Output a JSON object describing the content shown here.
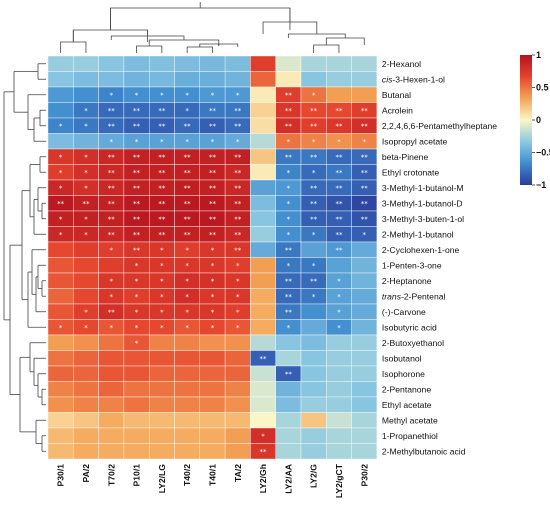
{
  "chart_data": {
    "type": "heatmap",
    "title": "",
    "xlabel": "",
    "ylabel": "",
    "columns": [
      "P30/1",
      "PA/2",
      "T70/2",
      "P10/1",
      "LY2/LG",
      "T40/2",
      "T40/1",
      "TA/2",
      "LY2/Gh",
      "LY2/AA",
      "LY2/G",
      "LY2/gCT",
      "P30/2"
    ],
    "rows": [
      {
        "label": "2-Hexanol",
        "italic": "",
        "rest": "2-Hexanol"
      },
      {
        "label": "cis-3-Hexen-1-ol",
        "italic": "cis",
        "rest": "-3-Hexen-1-ol"
      },
      {
        "label": "Butanal",
        "italic": "",
        "rest": "Butanal"
      },
      {
        "label": "Acrolein",
        "italic": "",
        "rest": "Acrolein"
      },
      {
        "label": "2,2,4,6,6-Pentamethylheptane",
        "italic": "",
        "rest": "2,2,4,6,6-Pentamethylheptane"
      },
      {
        "label": "Isopropyl acetate",
        "italic": "",
        "rest": "Isopropyl acetate"
      },
      {
        "label": "beta-Pinene",
        "italic": "",
        "rest": "beta-Pinene"
      },
      {
        "label": "Ethyl crotonate",
        "italic": "",
        "rest": "Ethyl crotonate"
      },
      {
        "label": "3-Methyl-1-butanol-M",
        "italic": "",
        "rest": "3-Methyl-1-butanol-M"
      },
      {
        "label": "3-Methyl-1-butanol-D",
        "italic": "",
        "rest": "3-Methyl-1-butanol-D"
      },
      {
        "label": "3-Methyl-3-buten-1-ol",
        "italic": "",
        "rest": "3-Methyl-3-buten-1-ol"
      },
      {
        "label": "2-Methyl-1-butanol",
        "italic": "",
        "rest": "2-Methyl-1-butanol"
      },
      {
        "label": "2-Cyclohexen-1-one",
        "italic": "",
        "rest": "2-Cyclohexen-1-one"
      },
      {
        "label": "1-Penten-3-one",
        "italic": "",
        "rest": "1-Penten-3-one"
      },
      {
        "label": "2-Heptanone",
        "italic": "",
        "rest": "2-Heptanone"
      },
      {
        "label": "trans-2-Pentenal",
        "italic": "trans",
        "rest": "-2-Pentenal"
      },
      {
        "label": "(-)-Carvone",
        "italic": "",
        "rest": "(-)-Carvone"
      },
      {
        "label": "Isobutyric acid",
        "italic": "",
        "rest": "Isobutyric acid"
      },
      {
        "label": "2-Butoxyethanol",
        "italic": "",
        "rest": "2-Butoxyethanol"
      },
      {
        "label": "Isobutanol",
        "italic": "",
        "rest": "Isobutanol"
      },
      {
        "label": "Isophorone",
        "italic": "",
        "rest": "Isophorone"
      },
      {
        "label": "2-Pentanone",
        "italic": "",
        "rest": "2-Pentanone"
      },
      {
        "label": "Ethyl acetate",
        "italic": "",
        "rest": "Ethyl acetate"
      },
      {
        "label": "Methyl acetate",
        "italic": "",
        "rest": "Methyl acetate"
      },
      {
        "label": "1-Propanethiol",
        "italic": "",
        "rest": "1-Propanethiol"
      },
      {
        "label": "2-Methylbutanoic acid",
        "italic": "",
        "rest": "2-Methylbutanoic acid"
      }
    ],
    "values": [
      [
        -0.3,
        -0.3,
        -0.35,
        -0.4,
        -0.38,
        -0.4,
        -0.42,
        -0.4,
        0.7,
        -0.1,
        -0.25,
        -0.25,
        -0.25
      ],
      [
        -0.35,
        -0.4,
        -0.4,
        -0.45,
        -0.42,
        -0.48,
        -0.48,
        -0.45,
        0.55,
        0.05,
        -0.35,
        -0.3,
        -0.3
      ],
      [
        -0.6,
        -0.65,
        -0.7,
        -0.65,
        -0.65,
        -0.65,
        -0.6,
        -0.6,
        0.05,
        0.7,
        0.5,
        0.35,
        0.35
      ],
      [
        -0.65,
        -0.75,
        -0.8,
        -0.8,
        -0.8,
        -0.8,
        -0.75,
        -0.75,
        0.15,
        0.75,
        0.65,
        0.65,
        0.7
      ],
      [
        -0.7,
        -0.75,
        -0.8,
        -0.85,
        -0.85,
        -0.8,
        -0.85,
        -0.8,
        0.1,
        0.8,
        0.7,
        0.75,
        0.8
      ],
      [
        -0.4,
        -0.45,
        -0.5,
        -0.55,
        -0.55,
        -0.55,
        -0.55,
        -0.5,
        -0.2,
        0.5,
        0.45,
        0.4,
        0.45
      ],
      [
        0.75,
        0.8,
        0.85,
        0.9,
        0.9,
        0.9,
        0.9,
        0.9,
        0.2,
        -0.75,
        -0.75,
        -0.8,
        -0.8
      ],
      [
        0.7,
        0.8,
        0.85,
        0.9,
        0.9,
        0.9,
        0.9,
        0.85,
        0.05,
        -0.7,
        -0.8,
        -0.75,
        -0.85
      ],
      [
        0.85,
        0.8,
        0.85,
        0.9,
        0.9,
        0.92,
        0.9,
        0.85,
        -0.55,
        -0.6,
        -0.8,
        -0.8,
        -0.85
      ],
      [
        0.95,
        0.9,
        0.9,
        0.95,
        0.95,
        0.95,
        0.95,
        0.9,
        -0.4,
        -0.65,
        -0.85,
        -0.9,
        -0.95
      ],
      [
        0.9,
        0.9,
        0.9,
        0.95,
        0.95,
        0.95,
        0.95,
        0.9,
        -0.35,
        -0.65,
        -0.85,
        -0.85,
        -0.9
      ],
      [
        0.85,
        0.85,
        0.85,
        0.9,
        0.9,
        0.9,
        0.9,
        0.85,
        -0.3,
        -0.65,
        -0.75,
        -0.85,
        -0.85
      ],
      [
        0.65,
        0.7,
        0.7,
        0.75,
        0.75,
        0.7,
        0.75,
        0.75,
        -0.5,
        -0.75,
        -0.55,
        -0.6,
        -0.5
      ],
      [
        0.6,
        0.65,
        0.7,
        0.75,
        0.75,
        0.75,
        0.75,
        0.7,
        0.35,
        -0.75,
        -0.75,
        -0.55,
        -0.45
      ],
      [
        0.6,
        0.65,
        0.75,
        0.75,
        0.75,
        0.8,
        0.78,
        0.75,
        0.35,
        -0.8,
        -0.8,
        -0.55,
        -0.45
      ],
      [
        0.55,
        0.65,
        0.75,
        0.7,
        0.75,
        0.8,
        0.75,
        0.75,
        0.3,
        -0.8,
        -0.75,
        -0.55,
        -0.5
      ],
      [
        0.6,
        0.7,
        0.8,
        0.75,
        0.75,
        0.75,
        0.75,
        0.7,
        0.3,
        -0.75,
        -0.65,
        -0.55,
        -0.5
      ],
      [
        0.6,
        0.65,
        0.6,
        0.65,
        0.65,
        0.6,
        0.65,
        0.6,
        0.3,
        -0.65,
        -0.5,
        -0.65,
        -0.45
      ],
      [
        0.35,
        0.4,
        0.5,
        0.6,
        0.45,
        0.45,
        0.4,
        0.4,
        -0.2,
        -0.35,
        -0.4,
        -0.3,
        -0.3
      ],
      [
        0.5,
        0.55,
        0.6,
        0.6,
        0.6,
        0.6,
        0.6,
        0.55,
        -0.85,
        -0.25,
        -0.35,
        -0.3,
        -0.3
      ],
      [
        0.55,
        0.55,
        0.6,
        0.6,
        0.55,
        0.55,
        0.55,
        0.55,
        -0.15,
        -0.85,
        -0.35,
        -0.3,
        -0.3
      ],
      [
        0.45,
        0.5,
        0.55,
        0.5,
        0.5,
        0.5,
        0.5,
        0.45,
        -0.1,
        -0.45,
        -0.35,
        -0.3,
        -0.35
      ],
      [
        0.4,
        0.45,
        0.45,
        0.5,
        0.45,
        0.45,
        0.45,
        0.4,
        -0.1,
        -0.4,
        -0.3,
        -0.3,
        -0.35
      ],
      [
        0.15,
        0.2,
        0.3,
        0.25,
        0.25,
        0.25,
        0.25,
        0.25,
        0.0,
        -0.25,
        0.2,
        -0.15,
        -0.25
      ],
      [
        0.25,
        0.3,
        0.3,
        0.3,
        0.3,
        0.3,
        0.3,
        0.35,
        0.8,
        -0.25,
        -0.3,
        -0.25,
        -0.25
      ],
      [
        0.25,
        0.3,
        0.3,
        0.3,
        0.3,
        0.3,
        0.3,
        0.35,
        0.75,
        -0.25,
        -0.3,
        -0.25,
        -0.25
      ]
    ],
    "significance": [
      [
        "",
        "",
        "",
        "",
        "",
        "",
        "",
        "",
        "",
        "",
        "",
        "",
        ""
      ],
      [
        "",
        "",
        "",
        "",
        "",
        "",
        "",
        "",
        "",
        "",
        "",
        "",
        ""
      ],
      [
        "",
        "",
        "*",
        "*",
        "*",
        "*",
        "*",
        "*",
        "",
        "**",
        "*",
        "",
        ""
      ],
      [
        "",
        "*",
        "**",
        "**",
        "**",
        "*",
        "**",
        "**",
        "",
        "**",
        "**",
        "**",
        "**"
      ],
      [
        "*",
        "*",
        "**",
        "**",
        "**",
        "**",
        "**",
        "**",
        "",
        "**",
        "**",
        "**",
        "**"
      ],
      [
        "",
        "",
        "*",
        "*",
        "*",
        "*",
        "*",
        "*",
        "",
        "*",
        "*",
        "*",
        "*"
      ],
      [
        "*",
        "*",
        "**",
        "**",
        "**",
        "**",
        "**",
        "**",
        "",
        "**",
        "**",
        "**",
        "**"
      ],
      [
        "*",
        "*",
        "**",
        "**",
        "**",
        "**",
        "**",
        "**",
        "",
        "*",
        "*",
        "**",
        "**"
      ],
      [
        "*",
        "*",
        "**",
        "**",
        "**",
        "**",
        "**",
        "**",
        "",
        "*",
        "**",
        "**",
        "**"
      ],
      [
        "**",
        "**",
        "**",
        "**",
        "**",
        "**",
        "**",
        "**",
        "",
        "*",
        "**",
        "**",
        "**"
      ],
      [
        "*",
        "*",
        "**",
        "**",
        "**",
        "**",
        "**",
        "**",
        "",
        "*",
        "**",
        "**",
        "**"
      ],
      [
        "*",
        "*",
        "**",
        "**",
        "**",
        "**",
        "**",
        "**",
        "",
        "*",
        "*",
        "**",
        "*"
      ],
      [
        "",
        "",
        "*",
        "**",
        "*",
        "*",
        "*",
        "**",
        "",
        "**",
        "",
        "**",
        ""
      ],
      [
        "",
        "",
        "",
        "*",
        "*",
        "*",
        "*",
        "*",
        "",
        "*",
        "*",
        "",
        ""
      ],
      [
        "",
        "",
        "*",
        "*",
        "*",
        "*",
        "*",
        "*",
        "",
        "**",
        "**",
        "*",
        ""
      ],
      [
        "",
        "",
        "*",
        "*",
        "*",
        "*",
        "*",
        "*",
        "",
        "**",
        "*",
        "*",
        ""
      ],
      [
        "",
        "*",
        "**",
        "*",
        "*",
        "*",
        "*",
        "*",
        "",
        "**",
        "",
        "*",
        ""
      ],
      [
        "*",
        "*",
        "*",
        "*",
        "*",
        "*",
        "*",
        "*",
        "",
        "*",
        "",
        "*",
        ""
      ],
      [
        "",
        "",
        "",
        "*",
        "",
        "",
        "",
        "",
        "",
        "",
        "",
        "",
        ""
      ],
      [
        "",
        "",
        "",
        "",
        "",
        "",
        "",
        "",
        "**",
        "",
        "",
        "",
        ""
      ],
      [
        "",
        "",
        "",
        "",
        "",
        "",
        "",
        "",
        "",
        "**",
        "",
        "",
        ""
      ],
      [
        "",
        "",
        "",
        "",
        "",
        "",
        "",
        "",
        "",
        "",
        "",
        "",
        ""
      ],
      [
        "",
        "",
        "",
        "",
        "",
        "",
        "",
        "",
        "",
        "",
        "",
        "",
        ""
      ],
      [
        "",
        "",
        "",
        "",
        "",
        "",
        "",
        "",
        "",
        "",
        "",
        "",
        ""
      ],
      [
        "",
        "",
        "",
        "",
        "",
        "",
        "",
        "",
        "*",
        "",
        "",
        "",
        ""
      ],
      [
        "",
        "",
        "",
        "",
        "",
        "",
        "",
        "",
        "**",
        "",
        "",
        "",
        ""
      ]
    ],
    "colorbar": {
      "range": [
        -1,
        1
      ],
      "ticks": [
        1,
        0.5,
        0,
        -0.5,
        -1
      ],
      "tick_labels": [
        "1",
        "0.5",
        "0",
        "−0.5",
        "−1"
      ],
      "colors": [
        "#2b3a9a",
        "#3f8ccf",
        "#8cc8e2",
        "#fbf6c6",
        "#f4a455",
        "#e5432d",
        "#b31220"
      ]
    },
    "row_dendrogram": true,
    "column_dendrogram": true
  }
}
